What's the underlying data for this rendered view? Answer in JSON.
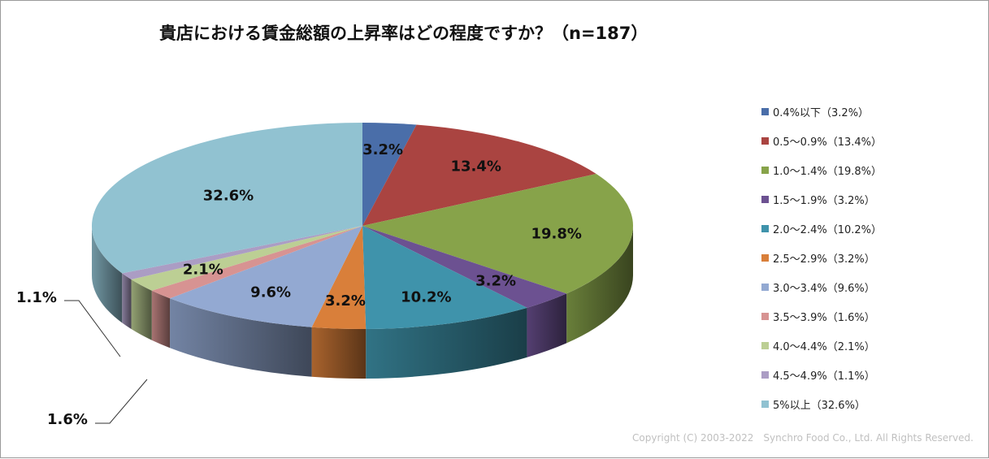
{
  "chart_data": {
    "type": "pie",
    "title": "貴店における賃金総額の上昇率はどの程度ですか？（n=187）",
    "categories": [
      "0.4%以下",
      "0.5～0.9%",
      "1.0～1.4%",
      "1.5～1.9%",
      "2.0～2.4%",
      "2.5～2.9%",
      "3.0～3.4%",
      "3.5～3.9%",
      "4.0～4.4%",
      "4.5～4.9%",
      "5%以上"
    ],
    "values": [
      3.2,
      13.4,
      19.8,
      3.2,
      10.2,
      3.2,
      9.6,
      1.6,
      2.1,
      1.1,
      32.6
    ],
    "data_labels": [
      "3.2%",
      "13.4%",
      "19.8%",
      "3.2%",
      "10.2%",
      "3.2%",
      "9.6%",
      "1.6%",
      "2.1%",
      "1.1%",
      "32.6%"
    ],
    "legend_entries": [
      "0.4%以下（3.2%）",
      "0.5～0.9%（13.4%）",
      "1.0～1.4%（19.8%）",
      "1.5～1.9%（3.2%）",
      "2.0～2.4%（10.2%）",
      "2.5～2.9%（3.2%）",
      "3.0～3.4%（9.6%）",
      "3.5～3.9%（1.6%）",
      "4.0～4.4%（2.1%）",
      "4.5～4.9%（1.1%）",
      "5%以上（32.6%）"
    ],
    "colors": [
      "#4a6ea9",
      "#aa4441",
      "#87a34a",
      "#6c5191",
      "#3f93ab",
      "#d97f3a",
      "#93a9d2",
      "#d79392",
      "#bccf94",
      "#ab9dc4",
      "#91c2d1"
    ],
    "legend_position": "right",
    "style": "3d-pie"
  },
  "copyright": "Copyright (C) 2003-2022　Synchro Food Co., Ltd. All Rights Reserved."
}
